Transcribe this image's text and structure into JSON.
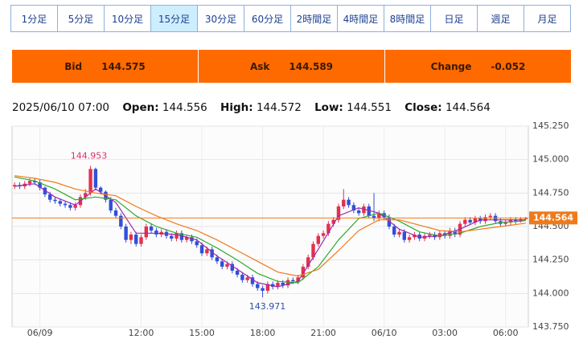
{
  "tabs": [
    "1分足",
    "5分足",
    "10分足",
    "15分足",
    "30分足",
    "60分足",
    "2時間足",
    "4時間足",
    "8時間足",
    "日足",
    "週足",
    "月足"
  ],
  "active_tab": 3,
  "quote": {
    "bid_label": "Bid",
    "bid": 144.575,
    "ask_label": "Ask",
    "ask": 144.589,
    "change_label": "Change",
    "change": -0.052
  },
  "info": {
    "time": "2025/06/10 07:00",
    "open_label": "Open:",
    "high_label": "High:",
    "low_label": "Low:",
    "close_label": "Close:"
  },
  "chart_data": {
    "type": "candlestick",
    "categories": [
      null,
      null,
      null,
      null,
      null,
      "06/09",
      null,
      null,
      null,
      null,
      null,
      null,
      null,
      null,
      null,
      null,
      null,
      null,
      null,
      null,
      null,
      null,
      null,
      null,
      null,
      "12:00",
      null,
      null,
      null,
      null,
      null,
      null,
      null,
      null,
      null,
      null,
      null,
      "15:00",
      null,
      null,
      null,
      null,
      null,
      null,
      null,
      null,
      null,
      null,
      null,
      "18:00",
      null,
      null,
      null,
      null,
      null,
      null,
      null,
      null,
      null,
      null,
      null,
      "21:00",
      null,
      null,
      null,
      null,
      null,
      null,
      null,
      null,
      null,
      null,
      null,
      "06/10",
      null,
      null,
      null,
      null,
      null,
      null,
      null,
      null,
      null,
      null,
      null,
      "03:00",
      null,
      null,
      null,
      null,
      null,
      null,
      null,
      null,
      null,
      null,
      null,
      "06:00",
      null,
      null,
      null,
      null
    ],
    "open": [
      144.8,
      144.81,
      144.8,
      144.82,
      144.84,
      144.83,
      144.79,
      144.74,
      144.7,
      144.69,
      144.67,
      144.66,
      144.64,
      144.66,
      144.72,
      144.75,
      144.93,
      144.79,
      144.76,
      144.7,
      144.62,
      144.58,
      144.5,
      144.4,
      144.44,
      144.37,
      144.42,
      144.5,
      144.47,
      144.44,
      144.46,
      144.43,
      144.41,
      144.45,
      144.4,
      144.42,
      144.39,
      144.36,
      144.3,
      144.33,
      144.27,
      144.24,
      144.2,
      144.22,
      144.17,
      144.14,
      144.1,
      144.12,
      144.07,
      144.04,
      144.02,
      144.07,
      144.05,
      144.08,
      144.06,
      144.1,
      144.09,
      144.12,
      144.2,
      144.27,
      144.37,
      144.43,
      144.45,
      144.52,
      144.55,
      144.65,
      144.7,
      144.66,
      144.62,
      144.6,
      144.65,
      144.58,
      144.56,
      144.6,
      144.57,
      144.5,
      144.44,
      144.46,
      144.4,
      144.42,
      144.44,
      144.41,
      144.43,
      144.44,
      144.42,
      144.45,
      144.43,
      144.47,
      144.44,
      144.52,
      144.55,
      144.53,
      144.56,
      144.54,
      144.57,
      144.58,
      144.54,
      144.52,
      144.53,
      144.55,
      144.54,
      144.556
    ],
    "high": [
      144.83,
      144.83,
      144.84,
      144.86,
      144.86,
      144.85,
      144.8,
      144.76,
      144.72,
      144.71,
      144.69,
      144.68,
      144.68,
      144.74,
      144.78,
      144.953,
      144.94,
      144.8,
      144.77,
      144.72,
      144.64,
      144.6,
      144.52,
      144.46,
      144.46,
      144.44,
      144.52,
      144.52,
      144.49,
      144.48,
      144.48,
      144.45,
      144.47,
      144.47,
      144.44,
      144.44,
      144.41,
      144.38,
      144.35,
      144.35,
      144.29,
      144.26,
      144.24,
      144.24,
      144.19,
      144.16,
      144.14,
      144.14,
      144.09,
      144.06,
      144.09,
      144.09,
      144.1,
      144.1,
      144.12,
      144.12,
      144.14,
      144.22,
      144.29,
      144.39,
      144.45,
      144.47,
      144.54,
      144.57,
      144.67,
      144.78,
      144.72,
      144.68,
      144.64,
      144.67,
      144.67,
      144.75,
      144.62,
      144.62,
      144.59,
      144.52,
      144.48,
      144.48,
      144.44,
      144.46,
      144.46,
      144.45,
      144.46,
      144.46,
      144.47,
      144.47,
      144.49,
      144.49,
      144.54,
      144.57,
      144.57,
      144.58,
      144.58,
      144.59,
      144.6,
      144.6,
      144.56,
      144.55,
      144.57,
      144.57,
      144.57,
      144.572
    ],
    "low": [
      144.78,
      144.78,
      144.78,
      144.8,
      144.81,
      144.77,
      144.72,
      144.68,
      144.67,
      144.65,
      144.64,
      144.62,
      144.62,
      144.64,
      144.7,
      144.73,
      144.77,
      144.74,
      144.68,
      144.6,
      144.56,
      144.48,
      144.38,
      144.37,
      144.35,
      144.35,
      144.4,
      144.45,
      144.42,
      144.42,
      144.41,
      144.39,
      144.39,
      144.38,
      144.38,
      144.37,
      144.34,
      144.28,
      144.28,
      144.25,
      144.22,
      144.18,
      144.18,
      144.15,
      144.12,
      144.08,
      144.08,
      144.05,
      144.02,
      143.971,
      144.0,
      144.03,
      144.03,
      144.04,
      144.04,
      144.07,
      144.07,
      144.1,
      144.18,
      144.25,
      144.35,
      144.41,
      144.43,
      144.5,
      144.53,
      144.63,
      144.64,
      144.6,
      144.58,
      144.58,
      144.56,
      144.54,
      144.54,
      144.55,
      144.48,
      144.42,
      144.42,
      144.38,
      144.38,
      144.4,
      144.39,
      144.39,
      144.41,
      144.4,
      144.4,
      144.41,
      144.41,
      144.42,
      144.42,
      144.5,
      144.51,
      144.51,
      144.52,
      144.52,
      144.55,
      144.52,
      144.5,
      144.5,
      144.51,
      144.52,
      144.53,
      144.551
    ],
    "close": [
      144.81,
      144.8,
      144.82,
      144.84,
      144.83,
      144.79,
      144.74,
      144.7,
      144.69,
      144.67,
      144.66,
      144.64,
      144.66,
      144.72,
      144.75,
      144.93,
      144.79,
      144.76,
      144.7,
      144.62,
      144.58,
      144.5,
      144.4,
      144.44,
      144.37,
      144.42,
      144.5,
      144.47,
      144.44,
      144.46,
      144.43,
      144.41,
      144.45,
      144.4,
      144.42,
      144.39,
      144.36,
      144.3,
      144.33,
      144.27,
      144.24,
      144.2,
      144.22,
      144.17,
      144.14,
      144.1,
      144.12,
      144.07,
      144.04,
      144.02,
      144.07,
      144.05,
      144.08,
      144.06,
      144.1,
      144.09,
      144.12,
      144.2,
      144.27,
      144.37,
      144.43,
      144.45,
      144.52,
      144.55,
      144.65,
      144.7,
      144.66,
      144.62,
      144.6,
      144.65,
      144.58,
      144.56,
      144.6,
      144.57,
      144.5,
      144.44,
      144.46,
      144.4,
      144.42,
      144.44,
      144.41,
      144.43,
      144.44,
      144.42,
      144.45,
      144.43,
      144.47,
      144.44,
      144.52,
      144.55,
      144.53,
      144.56,
      144.54,
      144.57,
      144.58,
      144.54,
      144.52,
      144.53,
      144.55,
      144.54,
      144.556,
      144.564
    ],
    "up_color": "#e2314d",
    "down_color": "#3050d8",
    "series": [
      {
        "color": "#9c27b0",
        "x": [
          0,
          4,
          8,
          12,
          16,
          20,
          24,
          28,
          32,
          36,
          40,
          44,
          48,
          52,
          56,
          60,
          64,
          68,
          72,
          76,
          80,
          84,
          88,
          92,
          96,
          100,
          101
        ],
        "values": [
          144.8,
          144.82,
          144.72,
          144.66,
          144.78,
          144.68,
          144.45,
          144.45,
          144.44,
          144.4,
          144.28,
          144.18,
          144.08,
          144.05,
          144.09,
          144.33,
          144.58,
          144.64,
          144.6,
          144.48,
          144.42,
          144.43,
          144.48,
          144.55,
          144.55,
          144.55,
          144.55
        ]
      },
      {
        "color": "#2eaa2e",
        "x": [
          0,
          4,
          8,
          12,
          16,
          20,
          24,
          28,
          32,
          36,
          40,
          44,
          48,
          52,
          56,
          60,
          64,
          68,
          72,
          76,
          80,
          84,
          88,
          92,
          96,
          100,
          101
        ],
        "values": [
          144.87,
          144.84,
          144.78,
          144.7,
          144.72,
          144.7,
          144.58,
          144.5,
          144.45,
          144.42,
          144.34,
          144.25,
          144.15,
          144.09,
          144.08,
          144.2,
          144.4,
          144.56,
          144.6,
          144.54,
          144.46,
          144.43,
          144.45,
          144.5,
          144.53,
          144.54,
          144.545
        ]
      },
      {
        "color": "#f07a1a",
        "x": [
          0,
          4,
          8,
          12,
          16,
          20,
          24,
          28,
          32,
          36,
          40,
          44,
          48,
          52,
          56,
          60,
          64,
          68,
          72,
          76,
          80,
          84,
          88,
          92,
          96,
          100,
          101
        ],
        "values": [
          144.88,
          144.86,
          144.83,
          144.78,
          144.75,
          144.73,
          144.65,
          144.58,
          144.52,
          144.47,
          144.4,
          144.32,
          144.24,
          144.16,
          144.13,
          144.18,
          144.32,
          144.47,
          144.55,
          144.55,
          144.51,
          144.47,
          144.46,
          144.48,
          144.5,
          144.52,
          144.525
        ]
      }
    ],
    "price_line_color": "#f07a1a",
    "high_label_color": "#d6336c",
    "low_label_color": "#3050a8",
    "ylim": [
      143.75,
      145.25
    ],
    "yticks": [
      {
        "value": 143.75,
        "label": "143.750"
      },
      {
        "value": 144.0,
        "label": "144.000"
      },
      {
        "value": 144.25,
        "label": "144.250"
      },
      {
        "value": 144.5,
        "label": "144.500"
      },
      {
        "value": 144.75,
        "label": "144.750"
      },
      {
        "value": 145.0,
        "label": "145.000"
      },
      {
        "value": 145.25,
        "label": "145.250"
      }
    ],
    "grid": true
  }
}
